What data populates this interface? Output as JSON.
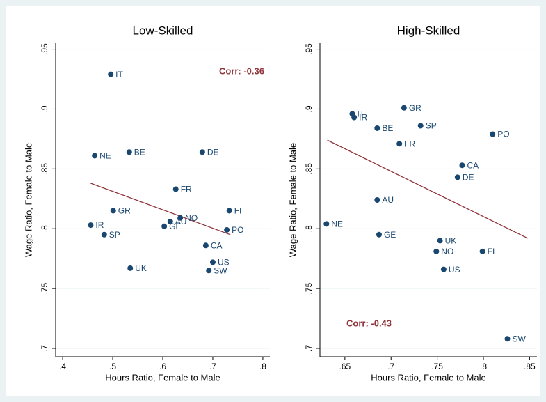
{
  "chart_data": [
    {
      "type": "scatter",
      "title": "Low-Skilled",
      "xlabel": "Hours Ratio, Female to Male",
      "ylabel": "Wage Ratio, Female to Male",
      "labels": [
        "IT",
        "NE",
        "BE",
        "DE",
        "FR",
        "GR",
        "FI",
        "IR",
        "SP",
        "NO",
        "AU",
        "GE",
        "PO",
        "CA",
        "US",
        "SW",
        "UK"
      ],
      "x": [
        0.496,
        0.464,
        0.533,
        0.679,
        0.626,
        0.501,
        0.733,
        0.456,
        0.483,
        0.635,
        0.615,
        0.603,
        0.728,
        0.686,
        0.7,
        0.692,
        0.535
      ],
      "y": [
        0.929,
        0.861,
        0.864,
        0.864,
        0.833,
        0.815,
        0.815,
        0.803,
        0.795,
        0.809,
        0.806,
        0.802,
        0.799,
        0.786,
        0.772,
        0.765,
        0.767
      ],
      "color": "#1a476f",
      "fit": {
        "x": [
          0.456,
          0.735
        ],
        "y": [
          0.838,
          0.795
        ],
        "color": "#90353b"
      },
      "annotation": "Corr: -0.36",
      "annotation_corner": "top-right",
      "xlim": [
        0.386,
        0.814
      ],
      "ylim": [
        0.693,
        0.955
      ],
      "xticks": [
        {
          "value": 0.4,
          "label": ".4"
        },
        {
          "value": 0.5,
          "label": ".5"
        },
        {
          "value": 0.6,
          "label": ".6"
        },
        {
          "value": 0.7,
          "label": ".7"
        },
        {
          "value": 0.8,
          "label": ".8"
        }
      ],
      "yticks": [
        {
          "value": 0.7,
          "label": ".7"
        },
        {
          "value": 0.75,
          "label": ".75"
        },
        {
          "value": 0.8,
          "label": ".8"
        },
        {
          "value": 0.85,
          "label": ".85"
        },
        {
          "value": 0.9,
          "label": ".9"
        },
        {
          "value": 0.95,
          "label": ".95"
        }
      ],
      "grid": true
    },
    {
      "type": "scatter",
      "title": "High-Skilled",
      "xlabel": "Hours Ratio, Female to Male",
      "ylabel": "Wage Ratio, Female to Male",
      "labels": [
        "IT",
        "IR",
        "GR",
        "BE",
        "SP",
        "FR",
        "PO",
        "CA",
        "DE",
        "AU",
        "NE",
        "GE",
        "UK",
        "NO",
        "FI",
        "US",
        "SW"
      ],
      "x": [
        0.658,
        0.66,
        0.714,
        0.685,
        0.732,
        0.709,
        0.81,
        0.777,
        0.772,
        0.685,
        0.63,
        0.687,
        0.753,
        0.749,
        0.799,
        0.757,
        0.826
      ],
      "y": [
        0.896,
        0.893,
        0.901,
        0.884,
        0.886,
        0.871,
        0.879,
        0.853,
        0.843,
        0.824,
        0.804,
        0.795,
        0.79,
        0.781,
        0.781,
        0.766,
        0.708
      ],
      "color": "#1a476f",
      "fit": {
        "x": [
          0.631,
          0.848
        ],
        "y": [
          0.874,
          0.792
        ],
        "color": "#90353b"
      },
      "annotation": "Corr: -0.43",
      "annotation_corner": "bottom-left",
      "xlim": [
        0.623,
        0.858
      ],
      "ylim": [
        0.693,
        0.955
      ],
      "xticks": [
        {
          "value": 0.65,
          "label": ".65"
        },
        {
          "value": 0.7,
          "label": ".7"
        },
        {
          "value": 0.75,
          "label": ".75"
        },
        {
          "value": 0.8,
          "label": ".8"
        },
        {
          "value": 0.85,
          "label": ".85"
        }
      ],
      "yticks": [
        {
          "value": 0.7,
          "label": ".7"
        },
        {
          "value": 0.75,
          "label": ".75"
        },
        {
          "value": 0.8,
          "label": ".8"
        },
        {
          "value": 0.85,
          "label": ".85"
        },
        {
          "value": 0.9,
          "label": ".9"
        },
        {
          "value": 0.95,
          "label": ".95"
        }
      ],
      "grid": true
    }
  ]
}
